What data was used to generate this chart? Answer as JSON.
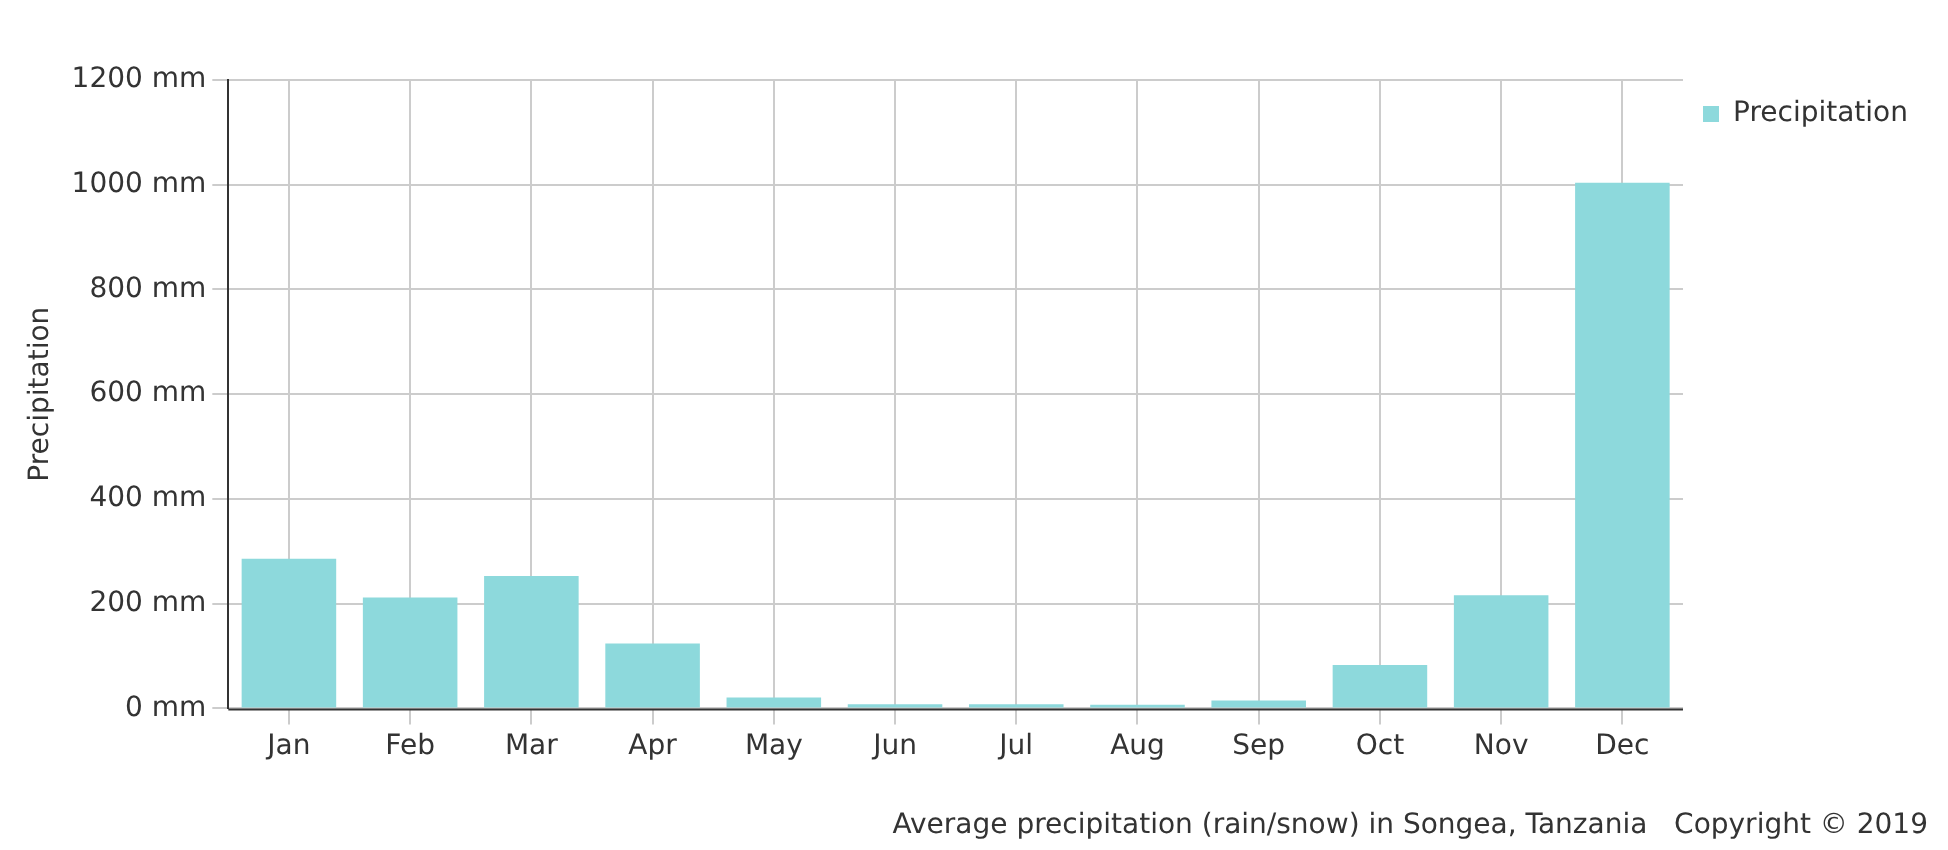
{
  "chart_data": {
    "type": "bar",
    "ylabel": "Precipitation",
    "categories": [
      "Jan",
      "Feb",
      "Mar",
      "Apr",
      "May",
      "Jun",
      "Jul",
      "Aug",
      "Sep",
      "Oct",
      "Nov",
      "Dec"
    ],
    "series": [
      {
        "name": "Precipitation",
        "color": "#8dd9dc",
        "values": [
          286,
          212,
          253,
          124,
          21,
          8,
          8,
          7,
          15,
          83,
          216,
          1004
        ]
      }
    ],
    "ylim": [
      0,
      1200
    ],
    "yticks": [
      {
        "value": 0,
        "label": "0 mm"
      },
      {
        "value": 200,
        "label": "200 mm"
      },
      {
        "value": 400,
        "label": "400 mm"
      },
      {
        "value": 600,
        "label": "600 mm"
      },
      {
        "value": 800,
        "label": "800 mm"
      },
      {
        "value": 1000,
        "label": "1000 mm"
      },
      {
        "value": 1200,
        "label": "1200 mm"
      }
    ],
    "grid": true,
    "legend": "top right",
    "annotations": [
      "Average precipitation (rain/snow) in Songea, Tanzania   Copyright © 2019"
    ]
  }
}
